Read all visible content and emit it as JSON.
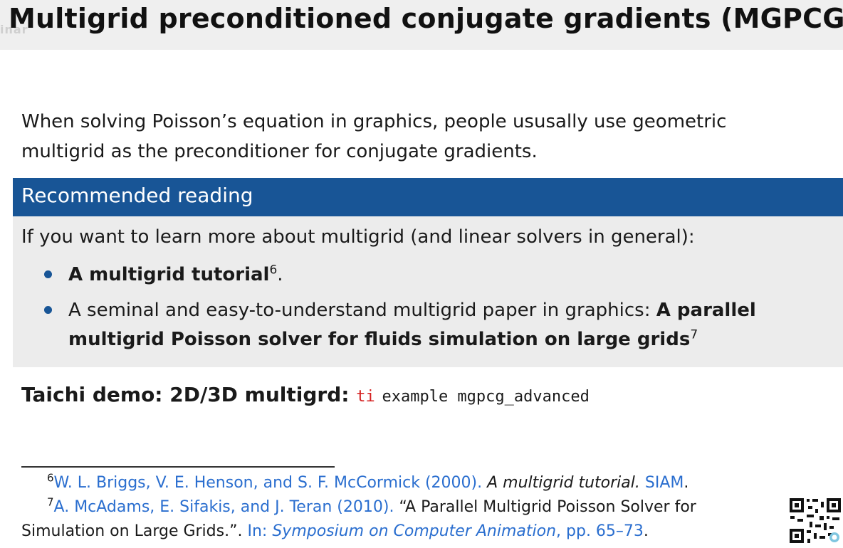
{
  "slide": {
    "title": "Multigrid preconditioned conjugate gradients (MGPCG)",
    "watermark": "inar",
    "intro_line1": "When solving Poisson’s equation in graphics, people ususally use geometric",
    "intro_line2": "multigrid as the preconditioner for conjugate gradients."
  },
  "block": {
    "header": "Recommended reading",
    "lead": "If you want to learn more about multigrid (and linear solvers in general):",
    "item1_bold": "A multigrid tutorial",
    "item1_sup": "6",
    "item1_tail": ".",
    "item2_text": "A seminal and easy-to-understand multigrid paper in graphics: ",
    "item2_bold1": "A parallel",
    "item2_bold2": "multigrid Poisson solver for fluids simulation on large grids",
    "item2_sup": "7"
  },
  "demo": {
    "label": "Taichi demo: 2D/3D multigrd:",
    "cmd_ti": "ti",
    "cmd_rest": "example mgpcg_advanced"
  },
  "footnotes": {
    "fn6_num": "6",
    "fn6_authors": "W. L. Briggs, V. E. Henson, and S. F. McCormick (2000).",
    "fn6_title": "A multigrid tutorial.",
    "fn6_pub": "SIAM",
    "fn6_end": ".",
    "fn7_num": "7",
    "fn7_authors": "A. McAdams, E. Sifakis, and J. Teran (2010).",
    "fn7_title": "“A Parallel Multigrid Poisson Solver for",
    "fn7_title2": "Simulation on Large Grids.”.",
    "fn7_in": "In:",
    "fn7_venue": "Symposium on Computer Animation",
    "fn7_pages": ", pp. 65–73",
    "fn7_end": "."
  },
  "colors": {
    "accent": "#185596",
    "link": "#2a6ecf",
    "code_red": "#d42020"
  },
  "icons": {
    "qr": "qr-code-icon"
  }
}
